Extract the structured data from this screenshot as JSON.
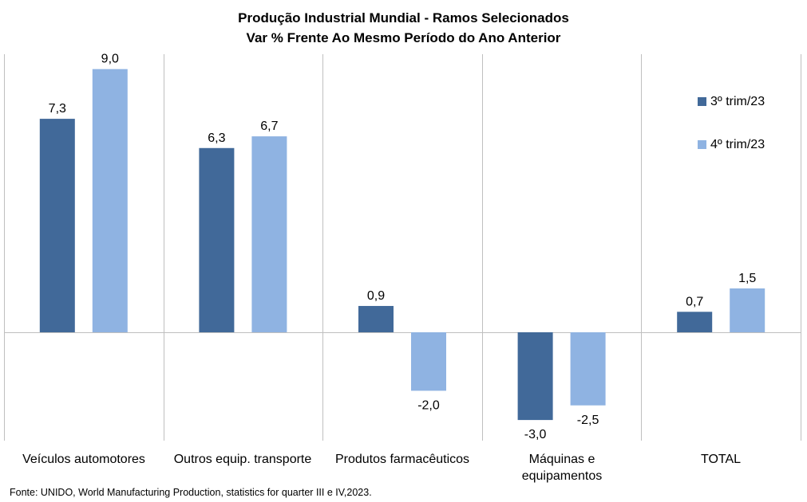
{
  "title_line1": "Produção  Industrial  Mundial  - Ramos Selecionados",
  "title_line2": "Var % Frente Ao Mesmo Período do Ano Anterior",
  "source": "Fonte: UNIDO, World Manufacturing Production, statistics for quarter III e IV,2023.",
  "chart_data": {
    "type": "bar",
    "categories": [
      "Veículos automotores",
      "Outros equip. transporte",
      "Produtos farmacêuticos",
      "Máquinas e equipamentos",
      "TOTAL"
    ],
    "category_lines": [
      [
        "Veículos automotores"
      ],
      [
        "Outros equip. transporte"
      ],
      [
        "Produtos farmacêuticos"
      ],
      [
        "Máquinas e",
        "equipamentos"
      ],
      [
        "TOTAL"
      ]
    ],
    "series": [
      {
        "name": "3º trim/23",
        "color": "#416999",
        "values": [
          7.3,
          6.3,
          0.9,
          -3.0,
          0.7
        ],
        "labels": [
          "7,3",
          "6,3",
          "0,9",
          "-3,0",
          "0,7"
        ]
      },
      {
        "name": "4º trim/23",
        "color": "#8FB3E2",
        "values": [
          9.0,
          6.7,
          -2.0,
          -2.5,
          1.5
        ],
        "labels": [
          "9,0",
          "6,7",
          "-2,0",
          "-2,5",
          "1,5"
        ]
      }
    ],
    "legend_position": "top-right",
    "grid": false,
    "category_separators": true,
    "ylim": [
      -3.7,
      9.6
    ]
  }
}
